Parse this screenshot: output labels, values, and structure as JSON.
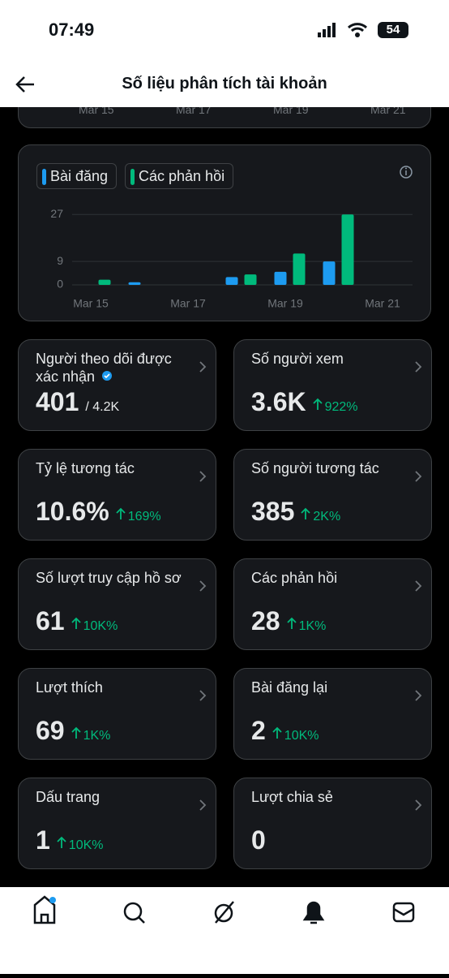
{
  "status_bar": {
    "time": "07:49",
    "battery": "54"
  },
  "header": {
    "title": "Số liệu phân tích tài khoản"
  },
  "top_card": {
    "dates": [
      "Mar 15",
      "Mar 17",
      "Mar 19",
      "Mar 21"
    ]
  },
  "chart_data": {
    "type": "bar",
    "categories": [
      "Mar 15",
      null,
      "Mar 17",
      null,
      "Mar 19",
      null,
      "Mar 21"
    ],
    "series": [
      {
        "name": "Bài đăng",
        "color": "#1d9bf0",
        "values": [
          0,
          1,
          0,
          3,
          5,
          9,
          0
        ]
      },
      {
        "name": "Các phản hồi",
        "color": "#00ba7c",
        "values": [
          2,
          0,
          0,
          4,
          12,
          27,
          0
        ]
      }
    ],
    "ylim": [
      0,
      28
    ],
    "yticks": [
      0,
      9,
      27
    ],
    "grid": true
  },
  "cards": [
    {
      "label": "Người theo dõi được xác nhận",
      "value": "401",
      "total": "/ 4.2K",
      "verified": true
    },
    {
      "label": "Số người xem",
      "value": "3.6K",
      "change": "922%"
    },
    {
      "label": "Tỷ lệ tương tác",
      "value": "10.6%",
      "change": "169%"
    },
    {
      "label": "Số người tương tác",
      "value": "385",
      "change": "2K%"
    },
    {
      "label": "Số lượt truy cập hồ sơ",
      "value": "61",
      "change": "10K%"
    },
    {
      "label": "Các phản hồi",
      "value": "28",
      "change": "1K%"
    },
    {
      "label": "Lượt thích",
      "value": "69",
      "change": "1K%"
    },
    {
      "label": "Bài đăng lại",
      "value": "2",
      "change": "10K%"
    },
    {
      "label": "Dấu trang",
      "value": "1",
      "change": "10K%"
    },
    {
      "label": "Lượt chia sẻ",
      "value": "0"
    }
  ]
}
